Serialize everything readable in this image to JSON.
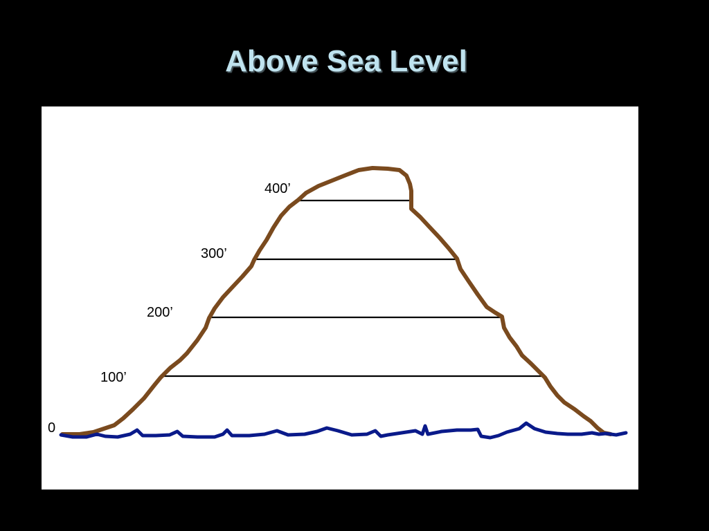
{
  "slide": {
    "title": "Above Sea Level"
  },
  "diagram": {
    "mountain_color": "#7a4a1e",
    "water_color": "#0a1a8a",
    "line_color": "#000000",
    "title_color": "#bfe3ef",
    "background_color": "#000000",
    "canvas_color": "#ffffff"
  },
  "elevations": [
    {
      "label": "0",
      "value": 0
    },
    {
      "label": "100’",
      "value": 100
    },
    {
      "label": "200’",
      "value": 200
    },
    {
      "label": "300’",
      "value": 300
    },
    {
      "label": "400’",
      "value": 400
    }
  ]
}
